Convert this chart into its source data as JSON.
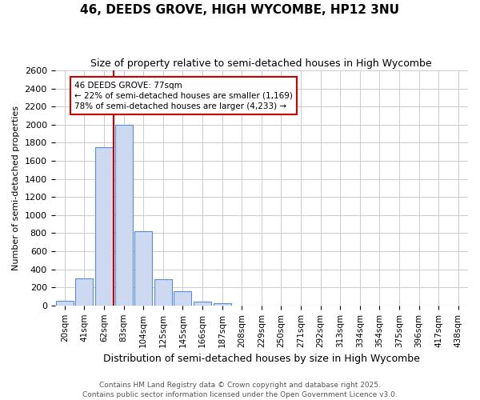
{
  "title": "46, DEEDS GROVE, HIGH WYCOMBE, HP12 3NU",
  "subtitle": "Size of property relative to semi-detached houses in High Wycombe",
  "xlabel": "Distribution of semi-detached houses by size in High Wycombe",
  "ylabel": "Number of semi-detached properties",
  "footer_line1": "Contains HM Land Registry data © Crown copyright and database right 2025.",
  "footer_line2": "Contains public sector information licensed under the Open Government Licence v3.0.",
  "bar_labels": [
    "20sqm",
    "41sqm",
    "62sqm",
    "83sqm",
    "104sqm",
    "125sqm",
    "145sqm",
    "166sqm",
    "187sqm",
    "208sqm",
    "229sqm",
    "250sqm",
    "271sqm",
    "292sqm",
    "313sqm",
    "334sqm",
    "354sqm",
    "375sqm",
    "396sqm",
    "417sqm",
    "438sqm"
  ],
  "bar_values": [
    50,
    300,
    1750,
    2000,
    820,
    290,
    155,
    40,
    25,
    0,
    0,
    0,
    0,
    0,
    0,
    0,
    0,
    0,
    0,
    0,
    0
  ],
  "bar_color": "#ccd9f0",
  "bar_edge_color": "#5b8dd9",
  "ylim": [
    0,
    2600
  ],
  "yticks": [
    0,
    200,
    400,
    600,
    800,
    1000,
    1200,
    1400,
    1600,
    1800,
    2000,
    2200,
    2400,
    2600
  ],
  "annotation_label": "46 DEEDS GROVE: 77sqm",
  "annotation_smaller_pct": "22%",
  "annotation_smaller_n": "1,169",
  "annotation_larger_pct": "78%",
  "annotation_larger_n": "4,233",
  "red_line_color": "#cc0000",
  "grid_color": "#cccccc",
  "background_color": "#ffffff"
}
